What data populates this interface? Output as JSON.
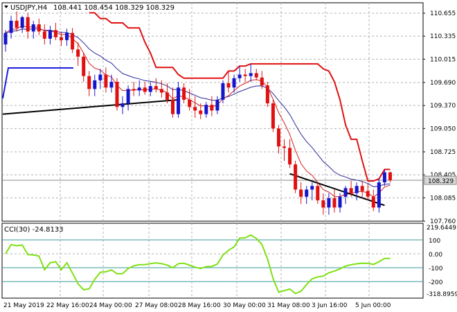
{
  "header": {
    "symbol": "USDJPY,H4",
    "ohlc": "108.441 108.454 108.329 108.329",
    "menu_icon": "triangle-down-icon"
  },
  "price_axis": {
    "ticks": [
      "110.655",
      "110.335",
      "110.015",
      "109.690",
      "109.370",
      "109.050",
      "108.725",
      "108.405",
      "108.085",
      "107.760"
    ],
    "current_price": "108.329",
    "ylim": [
      107.76,
      110.8
    ]
  },
  "cci": {
    "label": "CCI(30) -24.8133",
    "max_label": "219.6449",
    "min_label": "-318.8959",
    "levels": [
      "100",
      "0.00",
      "-100",
      "-200"
    ],
    "ylim": [
      -318.8959,
      219.6449
    ]
  },
  "time_axis": {
    "labels": [
      "21 May 2019",
      "22 May 16:00",
      "24 May 00:00",
      "27 May 08:00",
      "28 May 16:00",
      "30 May 00:00",
      "31 May 08:00",
      "3 Jun 16:00",
      "5 Jun 00:00"
    ]
  },
  "colors": {
    "bull": "#1515cc",
    "bear": "#e01010",
    "upper_line": "#e01010",
    "ma_blue": "#2a2a9a",
    "ma_red": "#d02020",
    "trend": "#000000",
    "cci_line": "#7ee012",
    "level_line": "#3a9a9a",
    "grid": "#b0b0b0"
  },
  "chart_data": {
    "type": "candlestick",
    "candles": [
      [
        110.22,
        110.42,
        110.12,
        110.38
      ],
      [
        110.38,
        110.62,
        110.3,
        110.55
      ],
      [
        110.55,
        110.68,
        110.4,
        110.45
      ],
      [
        110.45,
        110.62,
        110.38,
        110.6
      ],
      [
        110.6,
        110.66,
        110.3,
        110.4
      ],
      [
        110.4,
        110.55,
        110.3,
        110.5
      ],
      [
        110.5,
        110.58,
        110.35,
        110.4
      ],
      [
        110.4,
        110.5,
        110.22,
        110.3
      ],
      [
        110.3,
        110.48,
        110.22,
        110.42
      ],
      [
        110.42,
        110.52,
        110.28,
        110.32
      ],
      [
        110.32,
        110.4,
        110.2,
        110.28
      ],
      [
        110.28,
        110.44,
        110.2,
        110.38
      ],
      [
        110.38,
        110.45,
        110.1,
        110.15
      ],
      [
        110.15,
        110.25,
        109.92,
        110.05
      ],
      [
        110.05,
        110.1,
        109.7,
        109.78
      ],
      [
        109.78,
        109.85,
        109.5,
        109.6
      ],
      [
        109.6,
        109.8,
        109.5,
        109.72
      ],
      [
        109.72,
        109.88,
        109.6,
        109.8
      ],
      [
        109.8,
        109.9,
        109.55,
        109.62
      ],
      [
        109.62,
        109.8,
        109.55,
        109.7
      ],
      [
        109.7,
        109.75,
        109.3,
        109.35
      ],
      [
        109.35,
        109.5,
        109.25,
        109.4
      ],
      [
        109.4,
        109.65,
        109.3,
        109.6
      ],
      [
        109.6,
        109.7,
        109.5,
        109.58
      ],
      [
        109.58,
        109.72,
        109.5,
        109.62
      ],
      [
        109.62,
        109.7,
        109.52,
        109.56
      ],
      [
        109.56,
        109.7,
        109.5,
        109.64
      ],
      [
        109.64,
        109.75,
        109.55,
        109.6
      ],
      [
        109.6,
        109.72,
        109.48,
        109.55
      ],
      [
        109.55,
        109.68,
        109.4,
        109.45
      ],
      [
        109.45,
        109.62,
        109.2,
        109.25
      ],
      [
        109.25,
        109.7,
        109.2,
        109.62
      ],
      [
        109.62,
        109.68,
        109.4,
        109.45
      ],
      [
        109.45,
        109.6,
        109.3,
        109.35
      ],
      [
        109.35,
        109.5,
        109.2,
        109.3
      ],
      [
        109.3,
        109.4,
        109.18,
        109.25
      ],
      [
        109.25,
        109.42,
        109.2,
        109.38
      ],
      [
        109.38,
        109.5,
        109.22,
        109.3
      ],
      [
        109.3,
        109.5,
        109.25,
        109.45
      ],
      [
        109.45,
        109.72,
        109.4,
        109.68
      ],
      [
        109.68,
        109.85,
        109.55,
        109.62
      ],
      [
        109.62,
        109.8,
        109.55,
        109.75
      ],
      [
        109.75,
        109.92,
        109.7,
        109.8
      ],
      [
        109.8,
        109.88,
        109.7,
        109.78
      ],
      [
        109.78,
        109.95,
        109.7,
        109.82
      ],
      [
        109.82,
        109.88,
        109.72,
        109.76
      ],
      [
        109.76,
        109.85,
        109.6,
        109.65
      ],
      [
        109.65,
        109.7,
        109.35,
        109.4
      ],
      [
        109.4,
        109.45,
        109.0,
        109.05
      ],
      [
        109.05,
        109.1,
        108.7,
        108.8
      ],
      [
        108.8,
        108.9,
        108.6,
        108.78
      ],
      [
        108.78,
        108.9,
        108.5,
        108.55
      ],
      [
        108.55,
        108.6,
        108.15,
        108.2
      ],
      [
        108.2,
        108.3,
        108.0,
        108.1
      ],
      [
        108.1,
        108.25,
        108.0,
        108.2
      ],
      [
        108.2,
        108.3,
        108.05,
        108.25
      ],
      [
        108.25,
        108.3,
        108.0,
        108.05
      ],
      [
        108.05,
        108.15,
        107.85,
        107.95
      ],
      [
        107.95,
        108.15,
        107.85,
        108.08
      ],
      [
        108.08,
        108.2,
        107.88,
        107.95
      ],
      [
        107.95,
        108.15,
        107.88,
        108.1
      ],
      [
        108.1,
        108.25,
        108.0,
        108.22
      ],
      [
        108.22,
        108.32,
        108.1,
        108.15
      ],
      [
        108.15,
        108.3,
        108.05,
        108.25
      ],
      [
        108.25,
        108.32,
        108.1,
        108.18
      ],
      [
        108.18,
        108.28,
        108.05,
        108.1
      ],
      [
        108.1,
        108.2,
        107.9,
        107.95
      ],
      [
        107.95,
        108.35,
        107.88,
        108.3
      ],
      [
        108.3,
        108.48,
        108.25,
        108.44
      ],
      [
        108.44,
        108.45,
        108.3,
        108.33
      ]
    ],
    "upper_level_line": [
      [
        0,
        null
      ]
    ],
    "trendlines": 3
  }
}
